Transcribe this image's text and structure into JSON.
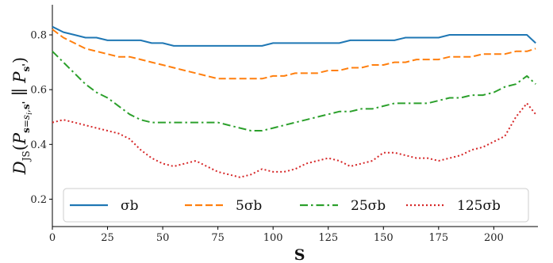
{
  "chart_data": {
    "type": "line",
    "xlabel": "S",
    "ylabel": "D_JS(P_{s=s_i,s'} || P_{s'})",
    "xlim": [
      0,
      220
    ],
    "ylim": [
      0.1,
      0.91
    ],
    "x_ticks": [
      0,
      25,
      50,
      75,
      100,
      125,
      150,
      175,
      200
    ],
    "y_ticks": [
      0.2,
      0.4,
      0.6,
      0.8
    ],
    "grid": false,
    "legend_position": "bottom",
    "x": [
      0,
      5,
      10,
      15,
      20,
      25,
      30,
      35,
      40,
      45,
      50,
      55,
      60,
      65,
      70,
      75,
      80,
      85,
      90,
      95,
      100,
      105,
      110,
      115,
      120,
      125,
      130,
      135,
      140,
      145,
      150,
      155,
      160,
      165,
      170,
      175,
      180,
      185,
      190,
      195,
      200,
      205,
      210,
      215,
      219
    ],
    "series": [
      {
        "name": "σb",
        "color": "#1f77b4",
        "dash": "solid",
        "values": [
          0.83,
          0.81,
          0.8,
          0.79,
          0.79,
          0.78,
          0.78,
          0.78,
          0.78,
          0.77,
          0.77,
          0.76,
          0.76,
          0.76,
          0.76,
          0.76,
          0.76,
          0.76,
          0.76,
          0.76,
          0.77,
          0.77,
          0.77,
          0.77,
          0.77,
          0.77,
          0.77,
          0.78,
          0.78,
          0.78,
          0.78,
          0.78,
          0.79,
          0.79,
          0.79,
          0.79,
          0.8,
          0.8,
          0.8,
          0.8,
          0.8,
          0.8,
          0.8,
          0.8,
          0.77
        ]
      },
      {
        "name": "5σb",
        "color": "#ff7f0e",
        "dash": "dashed",
        "values": [
          0.82,
          0.79,
          0.77,
          0.75,
          0.74,
          0.73,
          0.72,
          0.72,
          0.71,
          0.7,
          0.69,
          0.68,
          0.67,
          0.66,
          0.65,
          0.64,
          0.64,
          0.64,
          0.64,
          0.64,
          0.65,
          0.65,
          0.66,
          0.66,
          0.66,
          0.67,
          0.67,
          0.68,
          0.68,
          0.69,
          0.69,
          0.7,
          0.7,
          0.71,
          0.71,
          0.71,
          0.72,
          0.72,
          0.72,
          0.73,
          0.73,
          0.73,
          0.74,
          0.74,
          0.75
        ]
      },
      {
        "name": "25σb",
        "color": "#2ca02c",
        "dash": "dashdot",
        "values": [
          0.74,
          0.7,
          0.66,
          0.62,
          0.59,
          0.57,
          0.54,
          0.51,
          0.49,
          0.48,
          0.48,
          0.48,
          0.48,
          0.48,
          0.48,
          0.48,
          0.47,
          0.46,
          0.45,
          0.45,
          0.46,
          0.47,
          0.48,
          0.49,
          0.5,
          0.51,
          0.52,
          0.52,
          0.53,
          0.53,
          0.54,
          0.55,
          0.55,
          0.55,
          0.55,
          0.56,
          0.57,
          0.57,
          0.58,
          0.58,
          0.59,
          0.61,
          0.62,
          0.65,
          0.62
        ]
      },
      {
        "name": "125σb",
        "color": "#d62728",
        "dash": "dotted",
        "values": [
          0.48,
          0.49,
          0.48,
          0.47,
          0.46,
          0.45,
          0.44,
          0.42,
          0.38,
          0.35,
          0.33,
          0.32,
          0.33,
          0.34,
          0.32,
          0.3,
          0.29,
          0.28,
          0.29,
          0.31,
          0.3,
          0.3,
          0.31,
          0.33,
          0.34,
          0.35,
          0.34,
          0.32,
          0.33,
          0.34,
          0.37,
          0.37,
          0.36,
          0.35,
          0.35,
          0.34,
          0.35,
          0.36,
          0.38,
          0.39,
          0.41,
          0.43,
          0.5,
          0.55,
          0.51
        ]
      }
    ]
  }
}
